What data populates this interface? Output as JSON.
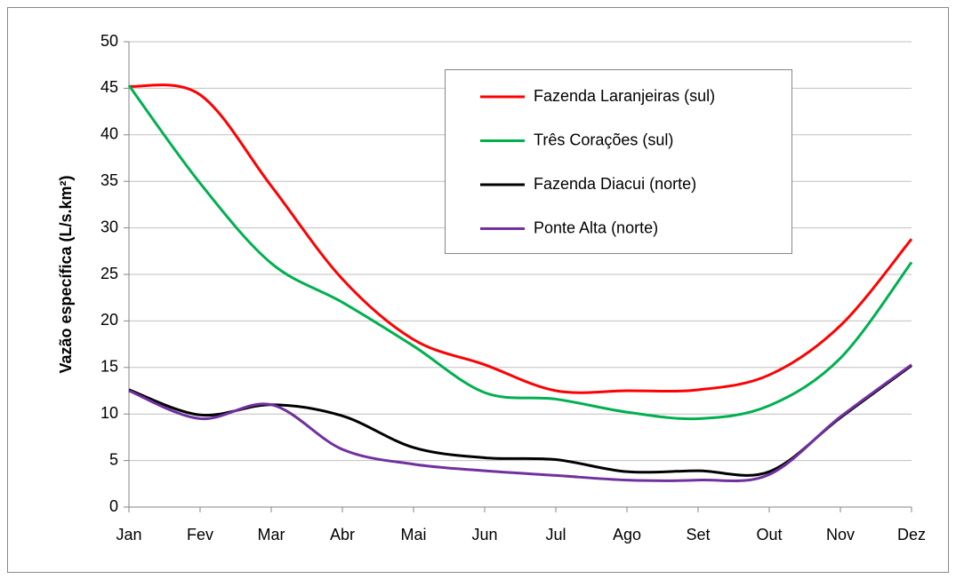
{
  "chart_data": {
    "type": "line",
    "y_label": "Vazão específica (L/s.km²)",
    "categories": [
      "Jan",
      "Fev",
      "Mar",
      "Abr",
      "Mai",
      "Jun",
      "Jul",
      "Ago",
      "Set",
      "Out",
      "Nov",
      "Dez"
    ],
    "series": [
      {
        "name": "Fazenda Laranjeiras (sul)",
        "color": "#ff0000",
        "values": [
          45.2,
          44.3,
          34.5,
          24.5,
          18,
          15.3,
          12.5,
          12.5,
          12.6,
          14.2,
          19.5,
          28.8
        ]
      },
      {
        "name": "Três Corações (sul)",
        "color": "#00b050",
        "values": [
          45.3,
          34.8,
          26.2,
          22,
          17.3,
          12.3,
          11.6,
          10.2,
          9.5,
          10.9,
          16,
          26.3
        ]
      },
      {
        "name": "Fazenda Diacui (norte)",
        "color": "#000000",
        "values": [
          12.6,
          9.9,
          11,
          9.8,
          6.4,
          5.3,
          5.1,
          3.8,
          3.9,
          3.8,
          9.6,
          15.2
        ]
      },
      {
        "name": "Ponte Alta (norte)",
        "color": "#7030a0",
        "values": [
          12.5,
          9.5,
          11,
          6.2,
          4.6,
          3.9,
          3.4,
          2.9,
          2.9,
          3.5,
          9.7,
          15.3
        ]
      }
    ],
    "ylim": [
      0,
      50
    ],
    "yticks": [
      0,
      5,
      10,
      15,
      20,
      25,
      30,
      35,
      40,
      45,
      50
    ],
    "grid": true
  }
}
